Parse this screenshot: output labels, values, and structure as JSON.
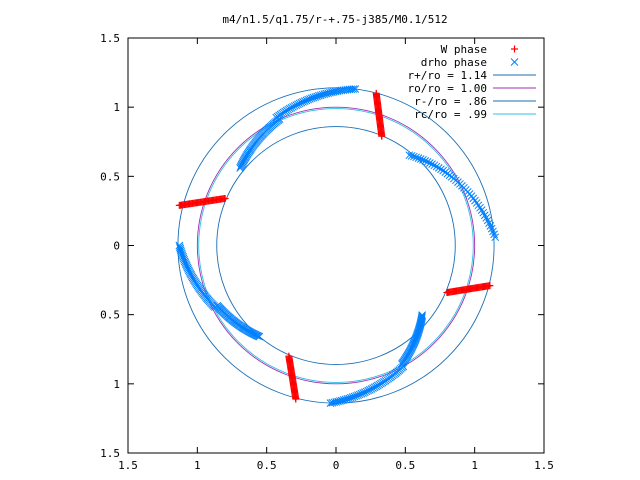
{
  "chart_data": {
    "type": "scatter",
    "title": "m4/n1.5/q1.75/r-+.75-j385/M0.1/512",
    "xlim": [
      -1.5,
      1.5
    ],
    "ylim": [
      -1.5,
      1.5
    ],
    "xticks": [
      -1.5,
      -1,
      -0.5,
      0,
      0.5,
      1,
      1.5
    ],
    "yticks": [
      -1.5,
      -1,
      -0.5,
      0,
      0.5,
      1,
      1.5
    ],
    "xtick_labels": [
      "1.5",
      "1",
      "0.5",
      "0",
      "0.5",
      "1",
      "1.5"
    ],
    "ytick_labels": [
      "1.5",
      "1",
      "0.5",
      "0",
      "0.5",
      "1",
      "1.5"
    ],
    "grid": false,
    "legend_position": "top-right",
    "series": [
      {
        "name": "W phase",
        "marker": "+",
        "color": "#ff0000",
        "segments": [
          {
            "from": [
              0.29,
              1.1
            ],
            "to": [
              0.33,
              0.79
            ]
          },
          {
            "from": [
              -1.13,
              0.29
            ],
            "to": [
              -0.8,
              0.34
            ]
          },
          {
            "from": [
              -0.34,
              -0.8
            ],
            "to": [
              -0.29,
              -1.11
            ]
          },
          {
            "from": [
              0.8,
              -0.34
            ],
            "to": [
              1.11,
              -0.29
            ]
          }
        ]
      },
      {
        "name": "drho phase",
        "marker": "x",
        "color": "#0080ff",
        "arcs": [
          {
            "r_from": 1.14,
            "r_to": 1.02,
            "theta_from": 83,
            "theta_to": 115
          },
          {
            "r_from": 1.0,
            "r_to": 0.89,
            "theta_from": 114,
            "theta_to": 141
          },
          {
            "r_from": 0.84,
            "r_to": 1.15,
            "theta_from": 51,
            "theta_to": 3
          },
          {
            "r_from": 1.13,
            "r_to": 0.98,
            "theta_from": 180,
            "theta_to": 207
          },
          {
            "r_from": 0.96,
            "r_to": 0.86,
            "theta_from": 207,
            "theta_to": 230
          },
          {
            "r_from": 1.14,
            "r_to": 1.0,
            "theta_from": 268,
            "theta_to": 299
          },
          {
            "r_from": 0.98,
            "r_to": 0.8,
            "theta_from": 299,
            "theta_to": 321
          }
        ]
      },
      {
        "name": "r+/ro = 1.14",
        "type": "circle",
        "r": 1.14,
        "color": "#1a6fb8"
      },
      {
        "name": "ro/ro = 1.00",
        "type": "circle",
        "r": 1.0,
        "color": "#a030b0"
      },
      {
        "name": "r-/ro = .86",
        "type": "circle",
        "r": 0.86,
        "color": "#1a6fb8"
      },
      {
        "name": "rc/ro = .99",
        "type": "circle",
        "r": 0.99,
        "color": "#30c0e8"
      }
    ]
  }
}
